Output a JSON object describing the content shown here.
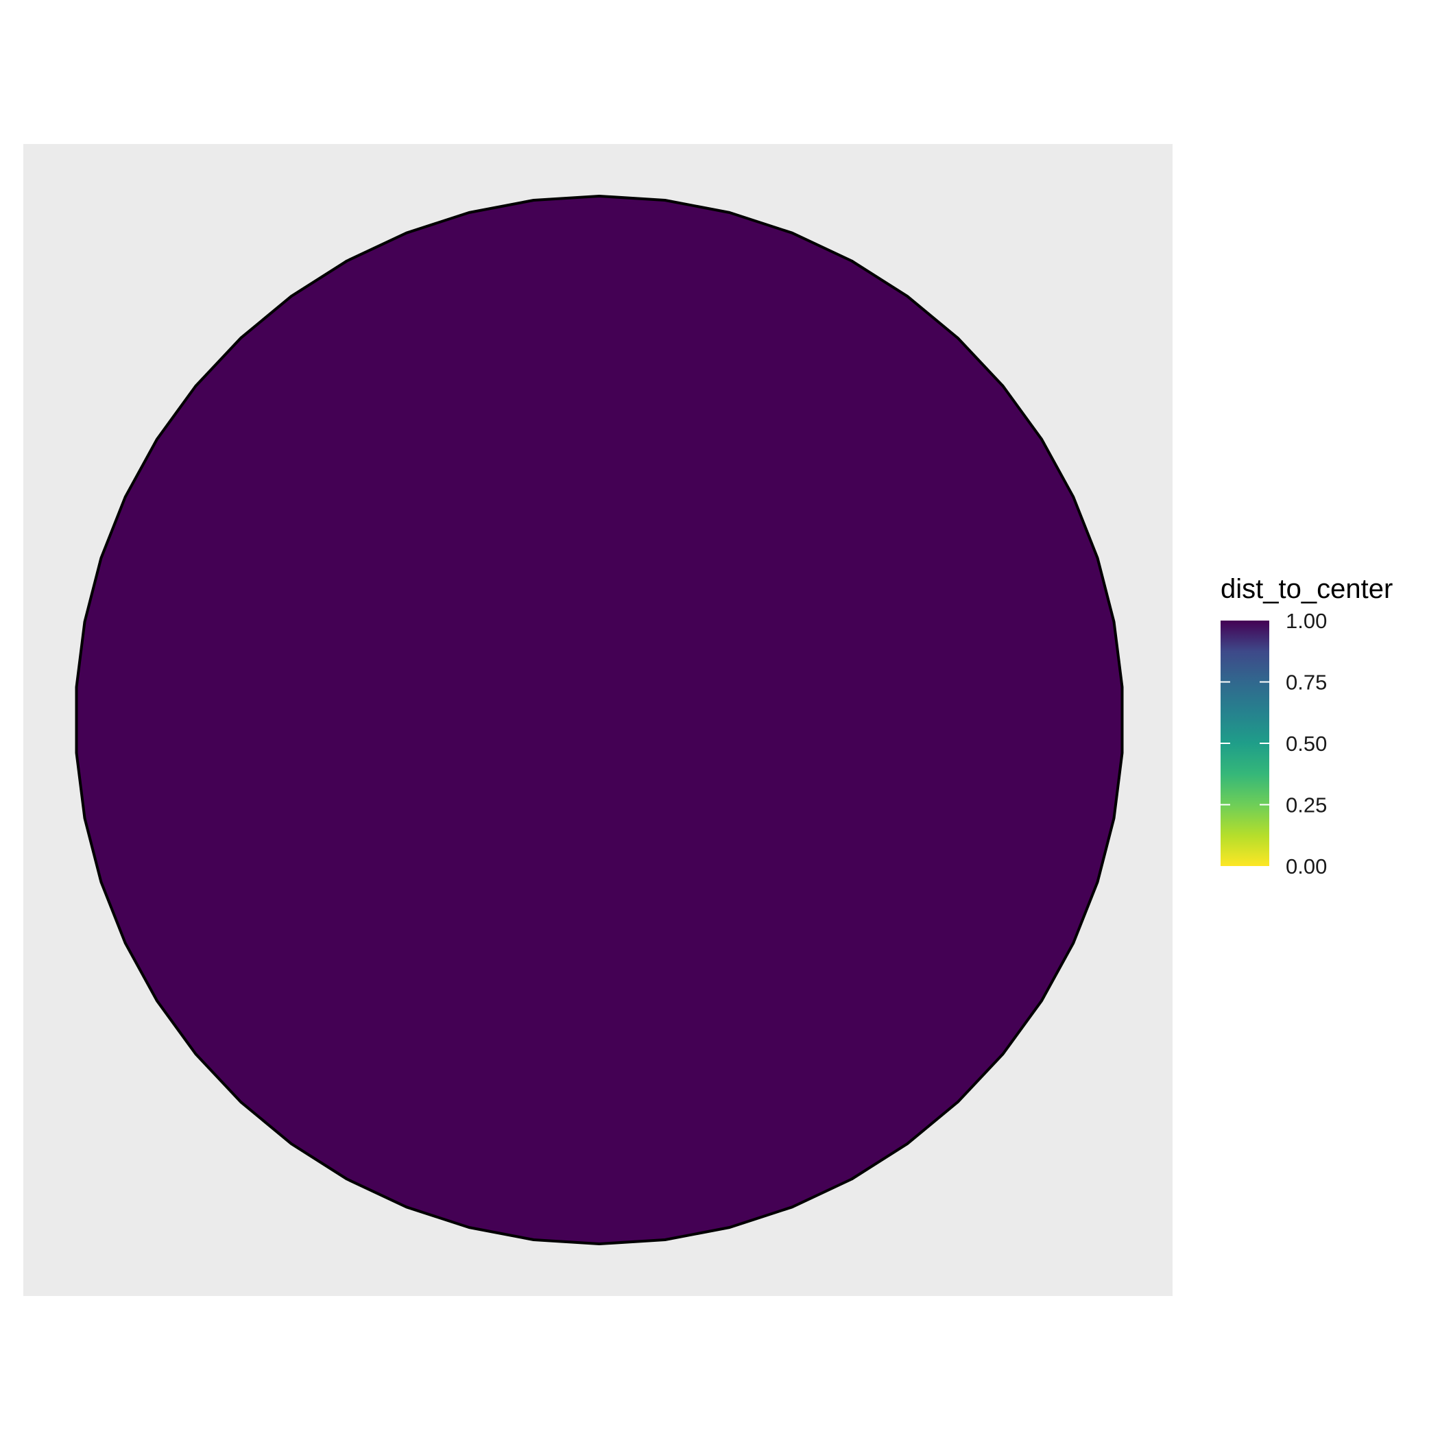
{
  "chart_data": {
    "type": "polygon",
    "title": "",
    "xlabel": "",
    "ylabel": "",
    "grid": false,
    "axes_visible": false,
    "panel_background": "#EBEBEB",
    "series": [
      {
        "shape": "circle-approximation",
        "vertex_count": 50,
        "dist_to_center": 1.0,
        "fill": "#440154",
        "outline": "#000000"
      }
    ],
    "legend": {
      "title": "dist_to_center",
      "type": "colorbar",
      "placement": "right",
      "palette": "viridis (reversed)",
      "range": [
        0,
        1
      ],
      "breaks": [
        0.0,
        0.25,
        0.5,
        0.75,
        1.0
      ],
      "labels": [
        "0.00",
        "0.25",
        "0.50",
        "0.75",
        "1.00"
      ],
      "color_low": "#FDE725",
      "color_high": "#440154"
    }
  }
}
